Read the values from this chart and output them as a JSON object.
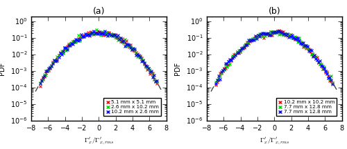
{
  "panel_a": {
    "title": "(a)",
    "legend": [
      {
        "label": "5.1 mm x 5.1 mm",
        "color": "#ff0000",
        "marker": "x"
      },
      {
        "label": "2.6 mm x 10.2 mm",
        "color": "#00cc00",
        "marker": "x"
      },
      {
        "label": "10.2 mm x 2.6 mm",
        "color": "#0000ff",
        "marker": "x"
      }
    ]
  },
  "panel_b": {
    "title": "(b)",
    "legend": [
      {
        "label": "10.2 mm x 10.2 mm",
        "color": "#ff0000",
        "marker": "x"
      },
      {
        "label": "7.7 mm x 12.8 mm",
        "color": "#00cc00",
        "marker": "x"
      },
      {
        "label": "7.7 mm x 12.8 mm",
        "color": "#0000ff",
        "marker": "x"
      }
    ]
  },
  "xlabel": "$\\Gamma^{\\prime}_x / \\Gamma^{\\prime}_{x,rms}$",
  "ylabel": "PDF",
  "xlim": [
    -8,
    8
  ],
  "ylim_log": [
    1e-06,
    2.0
  ],
  "gaussian_color": "#444444",
  "gaussian_style": "--",
  "sigma": 1.85,
  "marker_size": 2.5,
  "marker_lw": 0.8,
  "n_bins": 90,
  "noise_scale": 0.18
}
